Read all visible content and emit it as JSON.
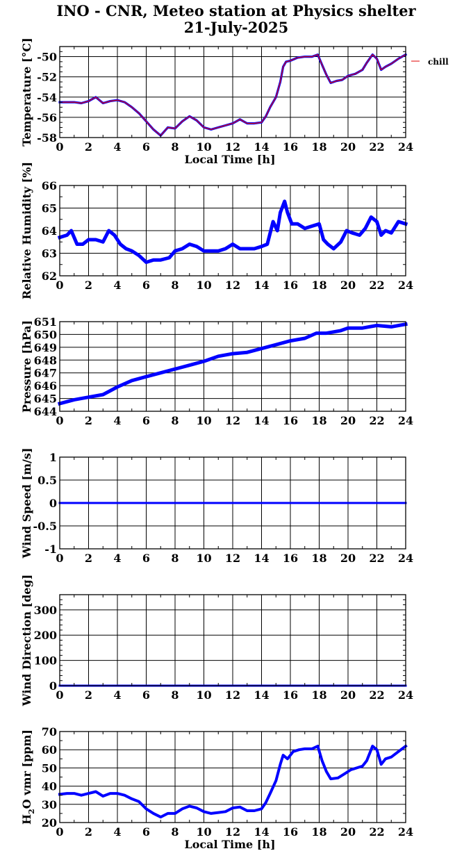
{
  "page": {
    "title_line1": "INO - CNR, Meteo station at Physics shelter",
    "title_line2": "21-July-2025"
  },
  "colors": {
    "series": "#0000ff",
    "overlay": "#e00000",
    "axes": "#000000",
    "background": "#ffffff"
  },
  "chart_data": [
    {
      "type": "line",
      "ylabel": "Temperature [°C]",
      "xlabel": "Local Time [h]",
      "xlim": [
        0,
        24
      ],
      "ylim": [
        -58,
        -49
      ],
      "yticks": [
        -58,
        -56,
        -54,
        -52,
        -50
      ],
      "xticks": [
        0,
        2,
        4,
        6,
        8,
        10,
        12,
        14,
        16,
        18,
        20,
        22,
        24
      ],
      "grid": true,
      "legend": "top-right",
      "series": [
        {
          "name": "",
          "color": "#0000ff",
          "x": [
            0,
            0.5,
            1,
            1.5,
            2,
            2.5,
            3,
            3.5,
            4,
            4.5,
            5,
            5.5,
            6,
            6.5,
            7,
            7.5,
            8,
            8.5,
            9,
            9.5,
            10,
            10.5,
            11,
            11.5,
            12,
            12.5,
            13,
            13.5,
            14,
            14.3,
            14.6,
            15,
            15.3,
            15.5,
            15.7,
            16,
            16.5,
            17,
            17.5,
            17.9,
            18.2,
            18.5,
            18.8,
            19.2,
            19.6,
            20,
            20.5,
            21,
            21.3,
            21.7,
            22,
            22.3,
            22.6,
            23,
            23.5,
            24
          ],
          "y": [
            -54.5,
            -54.5,
            -54.5,
            -54.6,
            -54.4,
            -54.0,
            -54.6,
            -54.4,
            -54.3,
            -54.5,
            -55.0,
            -55.6,
            -56.4,
            -57.2,
            -57.8,
            -57.0,
            -57.1,
            -56.4,
            -55.9,
            -56.3,
            -57.0,
            -57.2,
            -57.0,
            -56.8,
            -56.6,
            -56.2,
            -56.6,
            -56.6,
            -56.5,
            -55.9,
            -55.0,
            -54.0,
            -52.5,
            -51.0,
            -50.5,
            -50.4,
            -50.1,
            -50.0,
            -50.0,
            -49.8,
            -50.8,
            -51.8,
            -52.6,
            -52.4,
            -52.3,
            -51.9,
            -51.7,
            -51.3,
            -50.6,
            -49.8,
            -50.2,
            -51.3,
            -51.0,
            -50.7,
            -50.2,
            -49.8
          ]
        },
        {
          "name": "chill",
          "color": "#e00000",
          "x": [
            0,
            0.5,
            1,
            1.5,
            2,
            2.5,
            3,
            3.5,
            4,
            4.5,
            5,
            5.5,
            6,
            6.5,
            7,
            7.5,
            8,
            8.5,
            9,
            9.5,
            10,
            10.5,
            11,
            11.5,
            12,
            12.5,
            13,
            13.5,
            14,
            14.3,
            14.6,
            15,
            15.3,
            15.5,
            15.7,
            16,
            16.5,
            17,
            17.5,
            17.9,
            18.2,
            18.5,
            18.8,
            19.2,
            19.6,
            20,
            20.5,
            21,
            21.3,
            21.7,
            22,
            22.3,
            22.6,
            23,
            23.5,
            24
          ],
          "y": [
            -54.5,
            -54.5,
            -54.5,
            -54.6,
            -54.4,
            -54.0,
            -54.6,
            -54.4,
            -54.3,
            -54.5,
            -55.0,
            -55.6,
            -56.4,
            -57.2,
            -57.8,
            -57.0,
            -57.1,
            -56.4,
            -55.9,
            -56.3,
            -57.0,
            -57.2,
            -57.0,
            -56.8,
            -56.6,
            -56.2,
            -56.6,
            -56.6,
            -56.5,
            -55.9,
            -55.0,
            -54.0,
            -52.5,
            -51.0,
            -50.5,
            -50.4,
            -50.1,
            -50.0,
            -50.0,
            -49.8,
            -50.8,
            -51.8,
            -52.6,
            -52.4,
            -52.3,
            -51.9,
            -51.7,
            -51.3,
            -50.6,
            -49.8,
            -50.2,
            -51.3,
            -51.0,
            -50.7,
            -50.2,
            -49.8
          ]
        }
      ]
    },
    {
      "type": "line",
      "ylabel": "Relative Humidity [%]",
      "xlabel": "",
      "xlim": [
        0,
        24
      ],
      "ylim": [
        62,
        66
      ],
      "yticks": [
        62,
        63,
        64,
        65,
        66
      ],
      "xticks": [
        0,
        2,
        4,
        6,
        8,
        10,
        12,
        14,
        16,
        18,
        20,
        22,
        24
      ],
      "grid": true,
      "series": [
        {
          "name": "",
          "color": "#0000ff",
          "x": [
            0,
            0.5,
            0.8,
            1.2,
            1.6,
            2,
            2.5,
            3,
            3.4,
            3.8,
            4.2,
            4.6,
            5,
            5.5,
            6,
            6.5,
            7,
            7.6,
            8,
            8.5,
            9,
            9.5,
            10,
            10.5,
            11,
            11.5,
            12,
            12.5,
            13,
            13.5,
            14,
            14.4,
            14.8,
            15.1,
            15.3,
            15.6,
            15.8,
            16.1,
            16.5,
            17,
            17.5,
            18,
            18.3,
            18.6,
            19,
            19.5,
            19.9,
            20.3,
            20.8,
            21.2,
            21.6,
            22,
            22.3,
            22.6,
            23,
            23.5,
            24
          ],
          "y": [
            63.7,
            63.8,
            64.0,
            63.4,
            63.4,
            63.6,
            63.6,
            63.5,
            64.0,
            63.8,
            63.4,
            63.2,
            63.1,
            62.9,
            62.6,
            62.7,
            62.7,
            62.8,
            63.1,
            63.2,
            63.4,
            63.3,
            63.1,
            63.1,
            63.1,
            63.2,
            63.4,
            63.2,
            63.2,
            63.2,
            63.3,
            63.4,
            64.4,
            64.0,
            64.8,
            65.3,
            64.8,
            64.3,
            64.3,
            64.1,
            64.2,
            64.3,
            63.6,
            63.4,
            63.2,
            63.5,
            64.0,
            63.9,
            63.8,
            64.1,
            64.6,
            64.4,
            63.8,
            64.0,
            63.9,
            64.4,
            64.3
          ]
        }
      ]
    },
    {
      "type": "line",
      "ylabel": "Pressure [hPa]",
      "xlabel": "",
      "xlim": [
        0,
        24
      ],
      "ylim": [
        644,
        651
      ],
      "yticks": [
        644,
        645,
        646,
        647,
        648,
        649,
        650,
        651
      ],
      "xticks": [
        0,
        2,
        4,
        6,
        8,
        10,
        12,
        14,
        16,
        18,
        20,
        22,
        24
      ],
      "grid": true,
      "series": [
        {
          "name": "",
          "color": "#0000ff",
          "x": [
            0,
            1,
            2,
            3,
            4,
            5,
            6,
            7,
            8,
            9,
            10,
            11,
            12,
            13,
            14,
            15,
            16,
            17,
            17.8,
            18.5,
            19.5,
            20,
            21,
            22,
            23,
            24
          ],
          "y": [
            644.6,
            644.9,
            645.1,
            645.3,
            645.9,
            646.4,
            646.7,
            647.0,
            647.3,
            647.6,
            647.9,
            648.3,
            648.5,
            648.6,
            648.9,
            649.2,
            649.5,
            649.7,
            650.1,
            650.1,
            650.3,
            650.5,
            650.5,
            650.7,
            650.6,
            650.8
          ]
        }
      ]
    },
    {
      "type": "line",
      "ylabel": "Wind Speed [m/s]",
      "xlabel": "",
      "xlim": [
        0,
        24
      ],
      "ylim": [
        -1,
        1
      ],
      "yticks": [
        -1,
        -0.5,
        0,
        0.5,
        1
      ],
      "xticks": [
        0,
        2,
        4,
        6,
        8,
        10,
        12,
        14,
        16,
        18,
        20,
        22,
        24
      ],
      "grid": true,
      "series": [
        {
          "name": "",
          "color": "#0000ff",
          "x": [
            0,
            24
          ],
          "y": [
            0,
            0
          ]
        }
      ]
    },
    {
      "type": "line",
      "ylabel": "Wind Direction [deg]",
      "xlabel": "",
      "xlim": [
        0,
        24
      ],
      "ylim": [
        0,
        360
      ],
      "yticks": [
        0,
        100,
        200,
        300
      ],
      "xticks": [
        0,
        2,
        4,
        6,
        8,
        10,
        12,
        14,
        16,
        18,
        20,
        22,
        24
      ],
      "grid": true,
      "series": [
        {
          "name": "",
          "color": "#0000ff",
          "x": [
            0,
            24
          ],
          "y": [
            0,
            0
          ]
        }
      ]
    },
    {
      "type": "line",
      "ylabel": "H2O vmr [ppm]",
      "ylabel_parts": [
        "H",
        "2",
        "O vmr [ppm]"
      ],
      "xlabel": "Local Time [h]",
      "xlim": [
        0,
        24
      ],
      "ylim": [
        20,
        70
      ],
      "yticks": [
        20,
        30,
        40,
        50,
        60,
        70
      ],
      "xticks": [
        0,
        2,
        4,
        6,
        8,
        10,
        12,
        14,
        16,
        18,
        20,
        22,
        24
      ],
      "grid": true,
      "series": [
        {
          "name": "",
          "color": "#0000ff",
          "x": [
            0,
            0.5,
            1,
            1.5,
            2,
            2.5,
            3,
            3.5,
            4,
            4.5,
            5,
            5.5,
            6,
            6.5,
            7,
            7.5,
            8,
            8.5,
            9,
            9.5,
            10,
            10.5,
            11,
            11.5,
            12,
            12.5,
            13,
            13.5,
            14,
            14.3,
            14.6,
            15,
            15.3,
            15.5,
            15.8,
            16.2,
            16.6,
            17,
            17.5,
            17.9,
            18.2,
            18.5,
            18.8,
            19.3,
            19.8,
            20.2,
            20.6,
            21,
            21.3,
            21.7,
            22,
            22.3,
            22.6,
            23,
            23.5,
            24
          ],
          "y": [
            35.5,
            36,
            36,
            35,
            36,
            37,
            34.5,
            36,
            36,
            35,
            33,
            31.5,
            27.5,
            25,
            23,
            25,
            25,
            27.5,
            29,
            28,
            26,
            25,
            25.5,
            26,
            28,
            28.5,
            26.5,
            26.5,
            27.5,
            31,
            36,
            43,
            52,
            57,
            55,
            59,
            60,
            60.5,
            60.5,
            62,
            54,
            48,
            44,
            44.5,
            47,
            49,
            50,
            51,
            54,
            62,
            60,
            52,
            55,
            56,
            59,
            62
          ]
        }
      ]
    }
  ]
}
